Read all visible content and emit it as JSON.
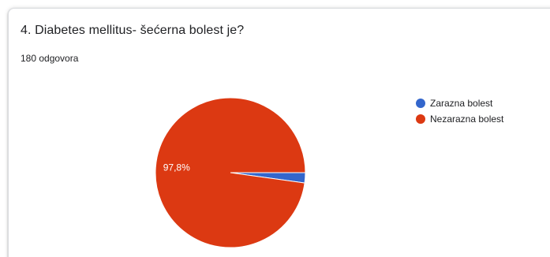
{
  "question": {
    "title": "4. Diabetes mellitus- šećerna bolest je?",
    "responses": "180 odgovora"
  },
  "chart_data": {
    "type": "pie",
    "categories": [
      "Zarazna bolest",
      "Nezarazna bolest"
    ],
    "values": [
      2.2,
      97.8
    ],
    "data_labels": [
      "",
      "97,8%"
    ],
    "colors": [
      "#3366cc",
      "#dc3912"
    ],
    "legend_position": "right"
  }
}
